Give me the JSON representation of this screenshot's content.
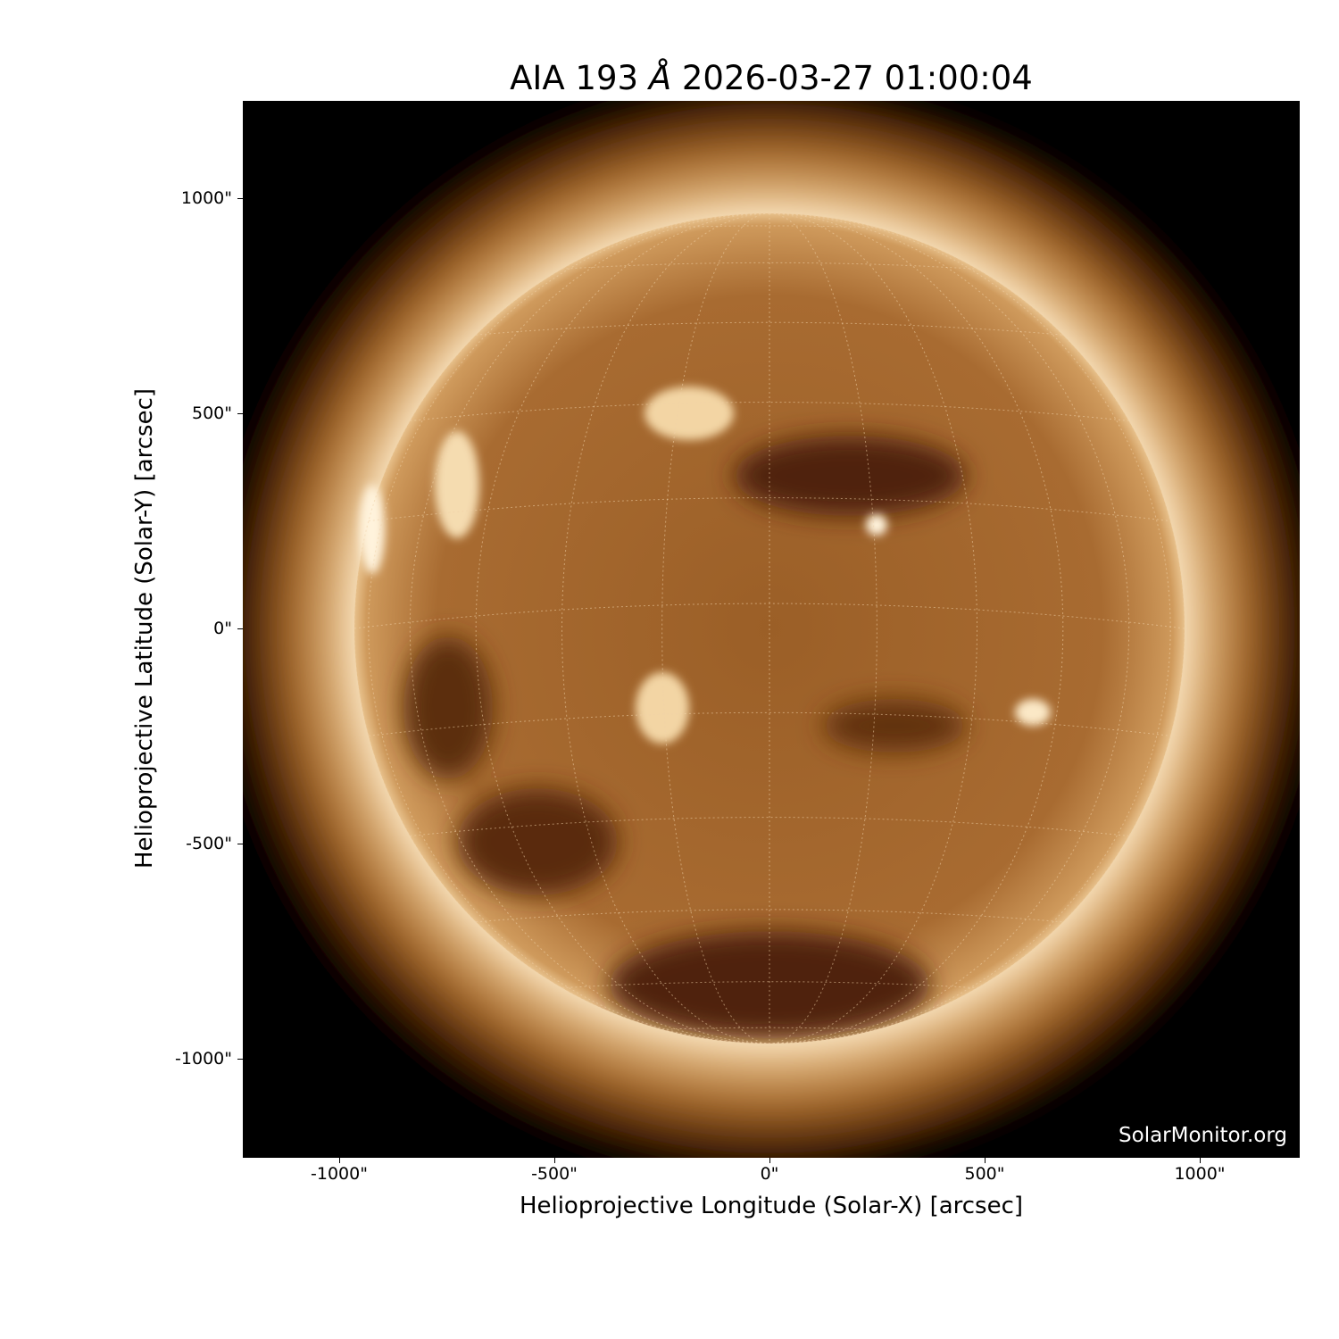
{
  "title": {
    "prefix": "AIA 193 ",
    "unit": "Å",
    "datetime": " 2026-03-27 01:00:04"
  },
  "axes": {
    "xlabel": "Helioprojective Longitude (Solar-X) [arcsec]",
    "ylabel": "Helioprojective Latitude (Solar-Y) [arcsec]",
    "xticks": [
      "-1000\"",
      "-500\"",
      "0\"",
      "500\"",
      "1000\""
    ],
    "yticks": [
      "1000\"",
      "500\"",
      "0\"",
      "-500\"",
      "-1000\""
    ],
    "xtick_values": [
      -1000,
      -500,
      0,
      500,
      1000
    ],
    "ytick_values": [
      1000,
      500,
      0,
      -500,
      -1000
    ],
    "range_arcsec": [
      -1228,
      1228
    ]
  },
  "image": {
    "instrument": "AIA",
    "wavelength": "193",
    "colormap_colors": [
      "#000000",
      "#5a2e0a",
      "#a0642a",
      "#d9a565",
      "#fff3dc"
    ],
    "solar_radius_arcsec": 965,
    "grid": "heliographic, dotted, 15° spacing"
  },
  "watermark": "SolarMonitor.org"
}
